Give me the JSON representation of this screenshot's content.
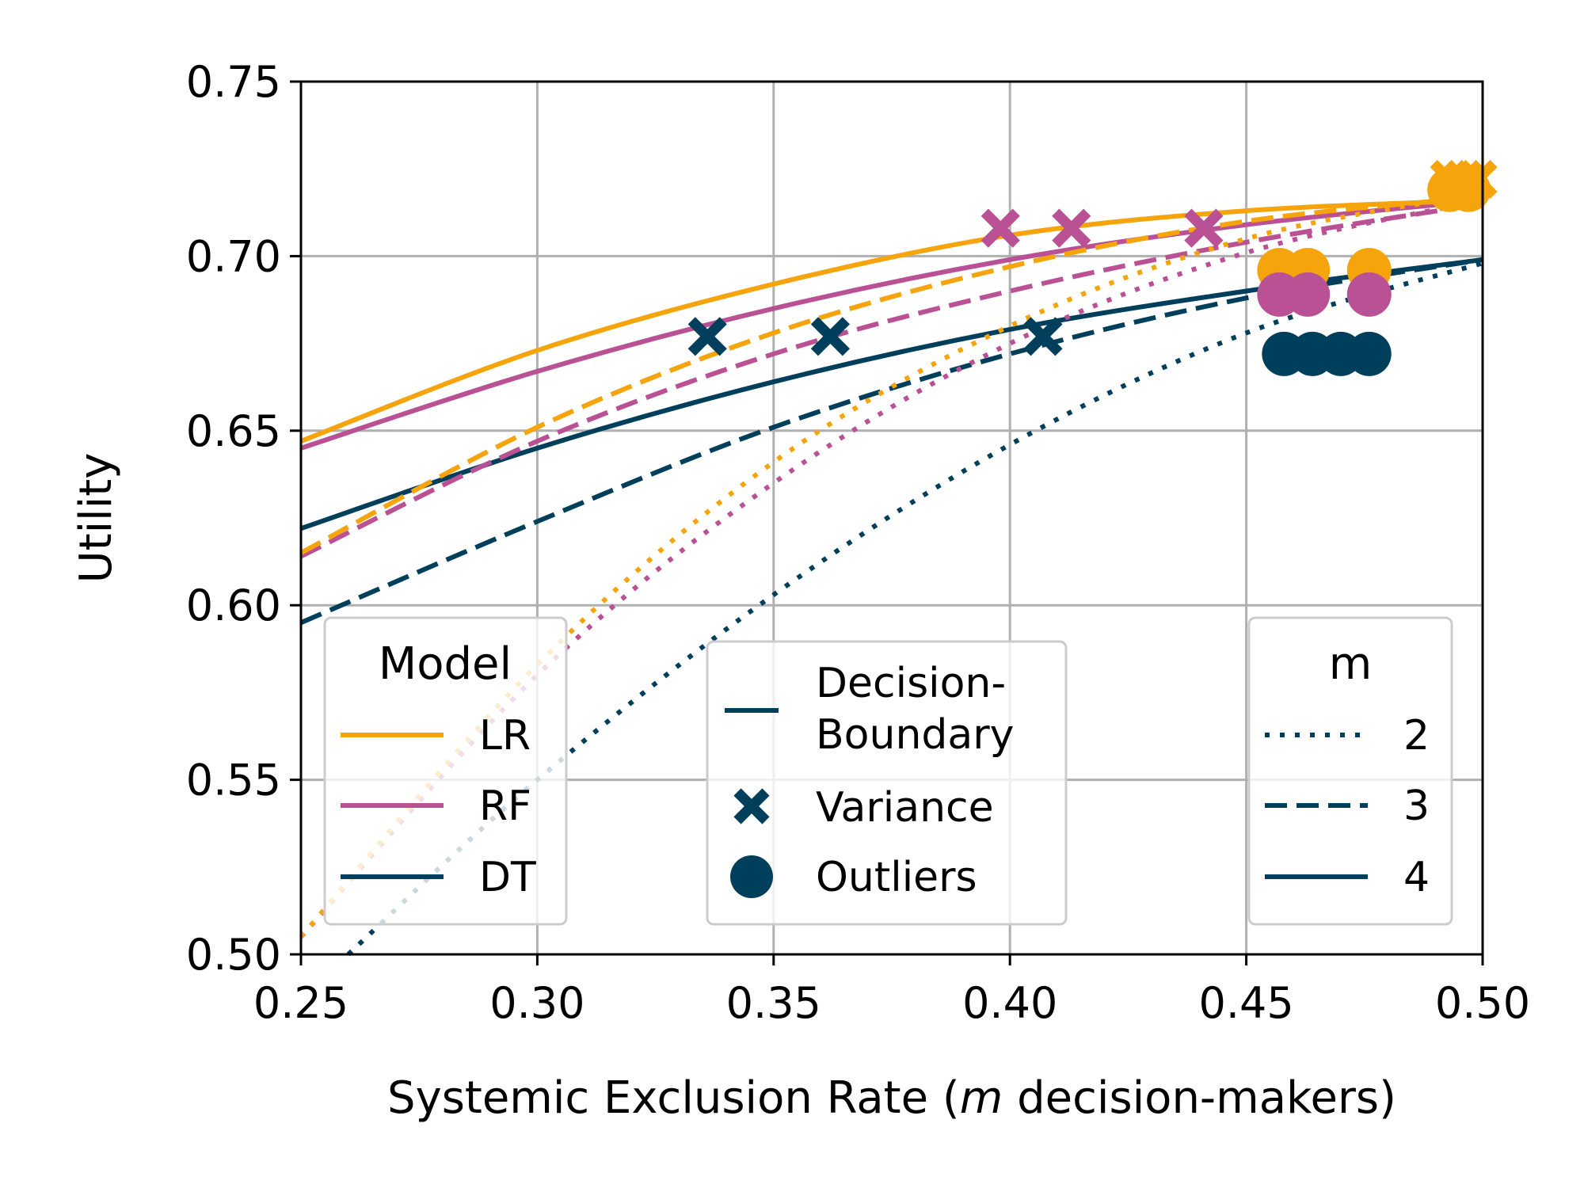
{
  "colors": {
    "LR": "#f5a40c",
    "RF": "#bb5195",
    "DT": "#003f5c",
    "grid": "#b0b0b0",
    "axis": "#000000"
  },
  "chart_data": {
    "type": "line",
    "xlabel_prefix": "Systemic Exclusion Rate (",
    "xlabel_italic": "m",
    "xlabel_suffix": " decision-makers)",
    "ylabel": "Utility",
    "xlim": [
      0.25,
      0.5
    ],
    "ylim": [
      0.5,
      0.75
    ],
    "x_ticks": [
      "0.25",
      "0.30",
      "0.35",
      "0.40",
      "0.45",
      "0.50"
    ],
    "y_ticks": [
      "0.50",
      "0.55",
      "0.60",
      "0.65",
      "0.70",
      "0.75"
    ],
    "grid": true,
    "series": [
      {
        "model": "LR",
        "m": 4,
        "method": "Decision-Boundary",
        "x": [
          0.25,
          0.3,
          0.35,
          0.4,
          0.45,
          0.5
        ],
        "y": [
          0.647,
          0.673,
          0.692,
          0.706,
          0.713,
          0.716
        ]
      },
      {
        "model": "LR",
        "m": 3,
        "method": "Decision-Boundary",
        "x": [
          0.25,
          0.3,
          0.35,
          0.4,
          0.45,
          0.5
        ],
        "y": [
          0.615,
          0.651,
          0.678,
          0.697,
          0.71,
          0.717
        ]
      },
      {
        "model": "LR",
        "m": 2,
        "method": "Decision-Boundary",
        "x": [
          0.25,
          0.3,
          0.35,
          0.4,
          0.45,
          0.5
        ],
        "y": [
          0.505,
          0.583,
          0.641,
          0.68,
          0.705,
          0.718
        ]
      },
      {
        "model": "RF",
        "m": 4,
        "method": "Decision-Boundary",
        "x": [
          0.25,
          0.3,
          0.35,
          0.4,
          0.45,
          0.5
        ],
        "y": [
          0.645,
          0.667,
          0.685,
          0.699,
          0.709,
          0.716
        ]
      },
      {
        "model": "RF",
        "m": 3,
        "method": "Decision-Boundary",
        "x": [
          0.25,
          0.3,
          0.35,
          0.4,
          0.45,
          0.5
        ],
        "y": [
          0.614,
          0.647,
          0.672,
          0.69,
          0.704,
          0.715
        ]
      },
      {
        "model": "RF",
        "m": 2,
        "method": "Decision-Boundary",
        "x": [
          0.25,
          0.3,
          0.35,
          0.4,
          0.45,
          0.5
        ],
        "y": [
          0.505,
          0.58,
          0.635,
          0.675,
          0.701,
          0.716
        ]
      },
      {
        "model": "DT",
        "m": 4,
        "method": "Decision-Boundary",
        "x": [
          0.25,
          0.3,
          0.35,
          0.4,
          0.45,
          0.5
        ],
        "y": [
          0.622,
          0.645,
          0.664,
          0.679,
          0.69,
          0.699
        ]
      },
      {
        "model": "DT",
        "m": 3,
        "method": "Decision-Boundary",
        "x": [
          0.25,
          0.3,
          0.35,
          0.4,
          0.45,
          0.5
        ],
        "y": [
          0.595,
          0.624,
          0.651,
          0.672,
          0.688,
          0.699
        ]
      },
      {
        "model": "DT",
        "m": 2,
        "method": "Decision-Boundary",
        "x": [
          0.26,
          0.3,
          0.35,
          0.4,
          0.45,
          0.5
        ],
        "y": [
          0.5,
          0.55,
          0.603,
          0.646,
          0.678,
          0.698
        ]
      }
    ],
    "points": [
      {
        "model": "LR",
        "method": "Variance",
        "x": 0.493,
        "y": 0.722
      },
      {
        "model": "LR",
        "method": "Variance",
        "x": 0.496,
        "y": 0.722
      },
      {
        "model": "LR",
        "method": "Variance",
        "x": 0.499,
        "y": 0.722
      },
      {
        "model": "RF",
        "method": "Variance",
        "x": 0.398,
        "y": 0.708
      },
      {
        "model": "RF",
        "method": "Variance",
        "x": 0.413,
        "y": 0.708
      },
      {
        "model": "RF",
        "method": "Variance",
        "x": 0.441,
        "y": 0.708
      },
      {
        "model": "DT",
        "method": "Variance",
        "x": 0.336,
        "y": 0.677
      },
      {
        "model": "DT",
        "method": "Variance",
        "x": 0.362,
        "y": 0.677
      },
      {
        "model": "DT",
        "method": "Variance",
        "x": 0.407,
        "y": 0.677
      },
      {
        "model": "LR",
        "method": "Outliers",
        "x": 0.457,
        "y": 0.696
      },
      {
        "model": "LR",
        "method": "Outliers",
        "x": 0.463,
        "y": 0.696
      },
      {
        "model": "LR",
        "method": "Outliers",
        "x": 0.476,
        "y": 0.696
      },
      {
        "model": "LR",
        "method": "Outliers",
        "x": 0.493,
        "y": 0.719
      },
      {
        "model": "LR",
        "method": "Outliers",
        "x": 0.497,
        "y": 0.719
      },
      {
        "model": "RF",
        "method": "Outliers",
        "x": 0.457,
        "y": 0.689
      },
      {
        "model": "RF",
        "method": "Outliers",
        "x": 0.463,
        "y": 0.689
      },
      {
        "model": "RF",
        "method": "Outliers",
        "x": 0.476,
        "y": 0.689
      },
      {
        "model": "DT",
        "method": "Outliers",
        "x": 0.458,
        "y": 0.672
      },
      {
        "model": "DT",
        "method": "Outliers",
        "x": 0.464,
        "y": 0.672
      },
      {
        "model": "DT",
        "method": "Outliers",
        "x": 0.47,
        "y": 0.672
      },
      {
        "model": "DT",
        "method": "Outliers",
        "x": 0.476,
        "y": 0.672
      }
    ],
    "legends": {
      "model": {
        "title": "Model",
        "items": [
          "LR",
          "RF",
          "DT"
        ]
      },
      "method": {
        "items": [
          "Decision-",
          "Boundary",
          "Variance",
          "Outliers"
        ]
      },
      "m": {
        "title": "m",
        "items": [
          "2",
          "3",
          "4"
        ]
      }
    }
  }
}
